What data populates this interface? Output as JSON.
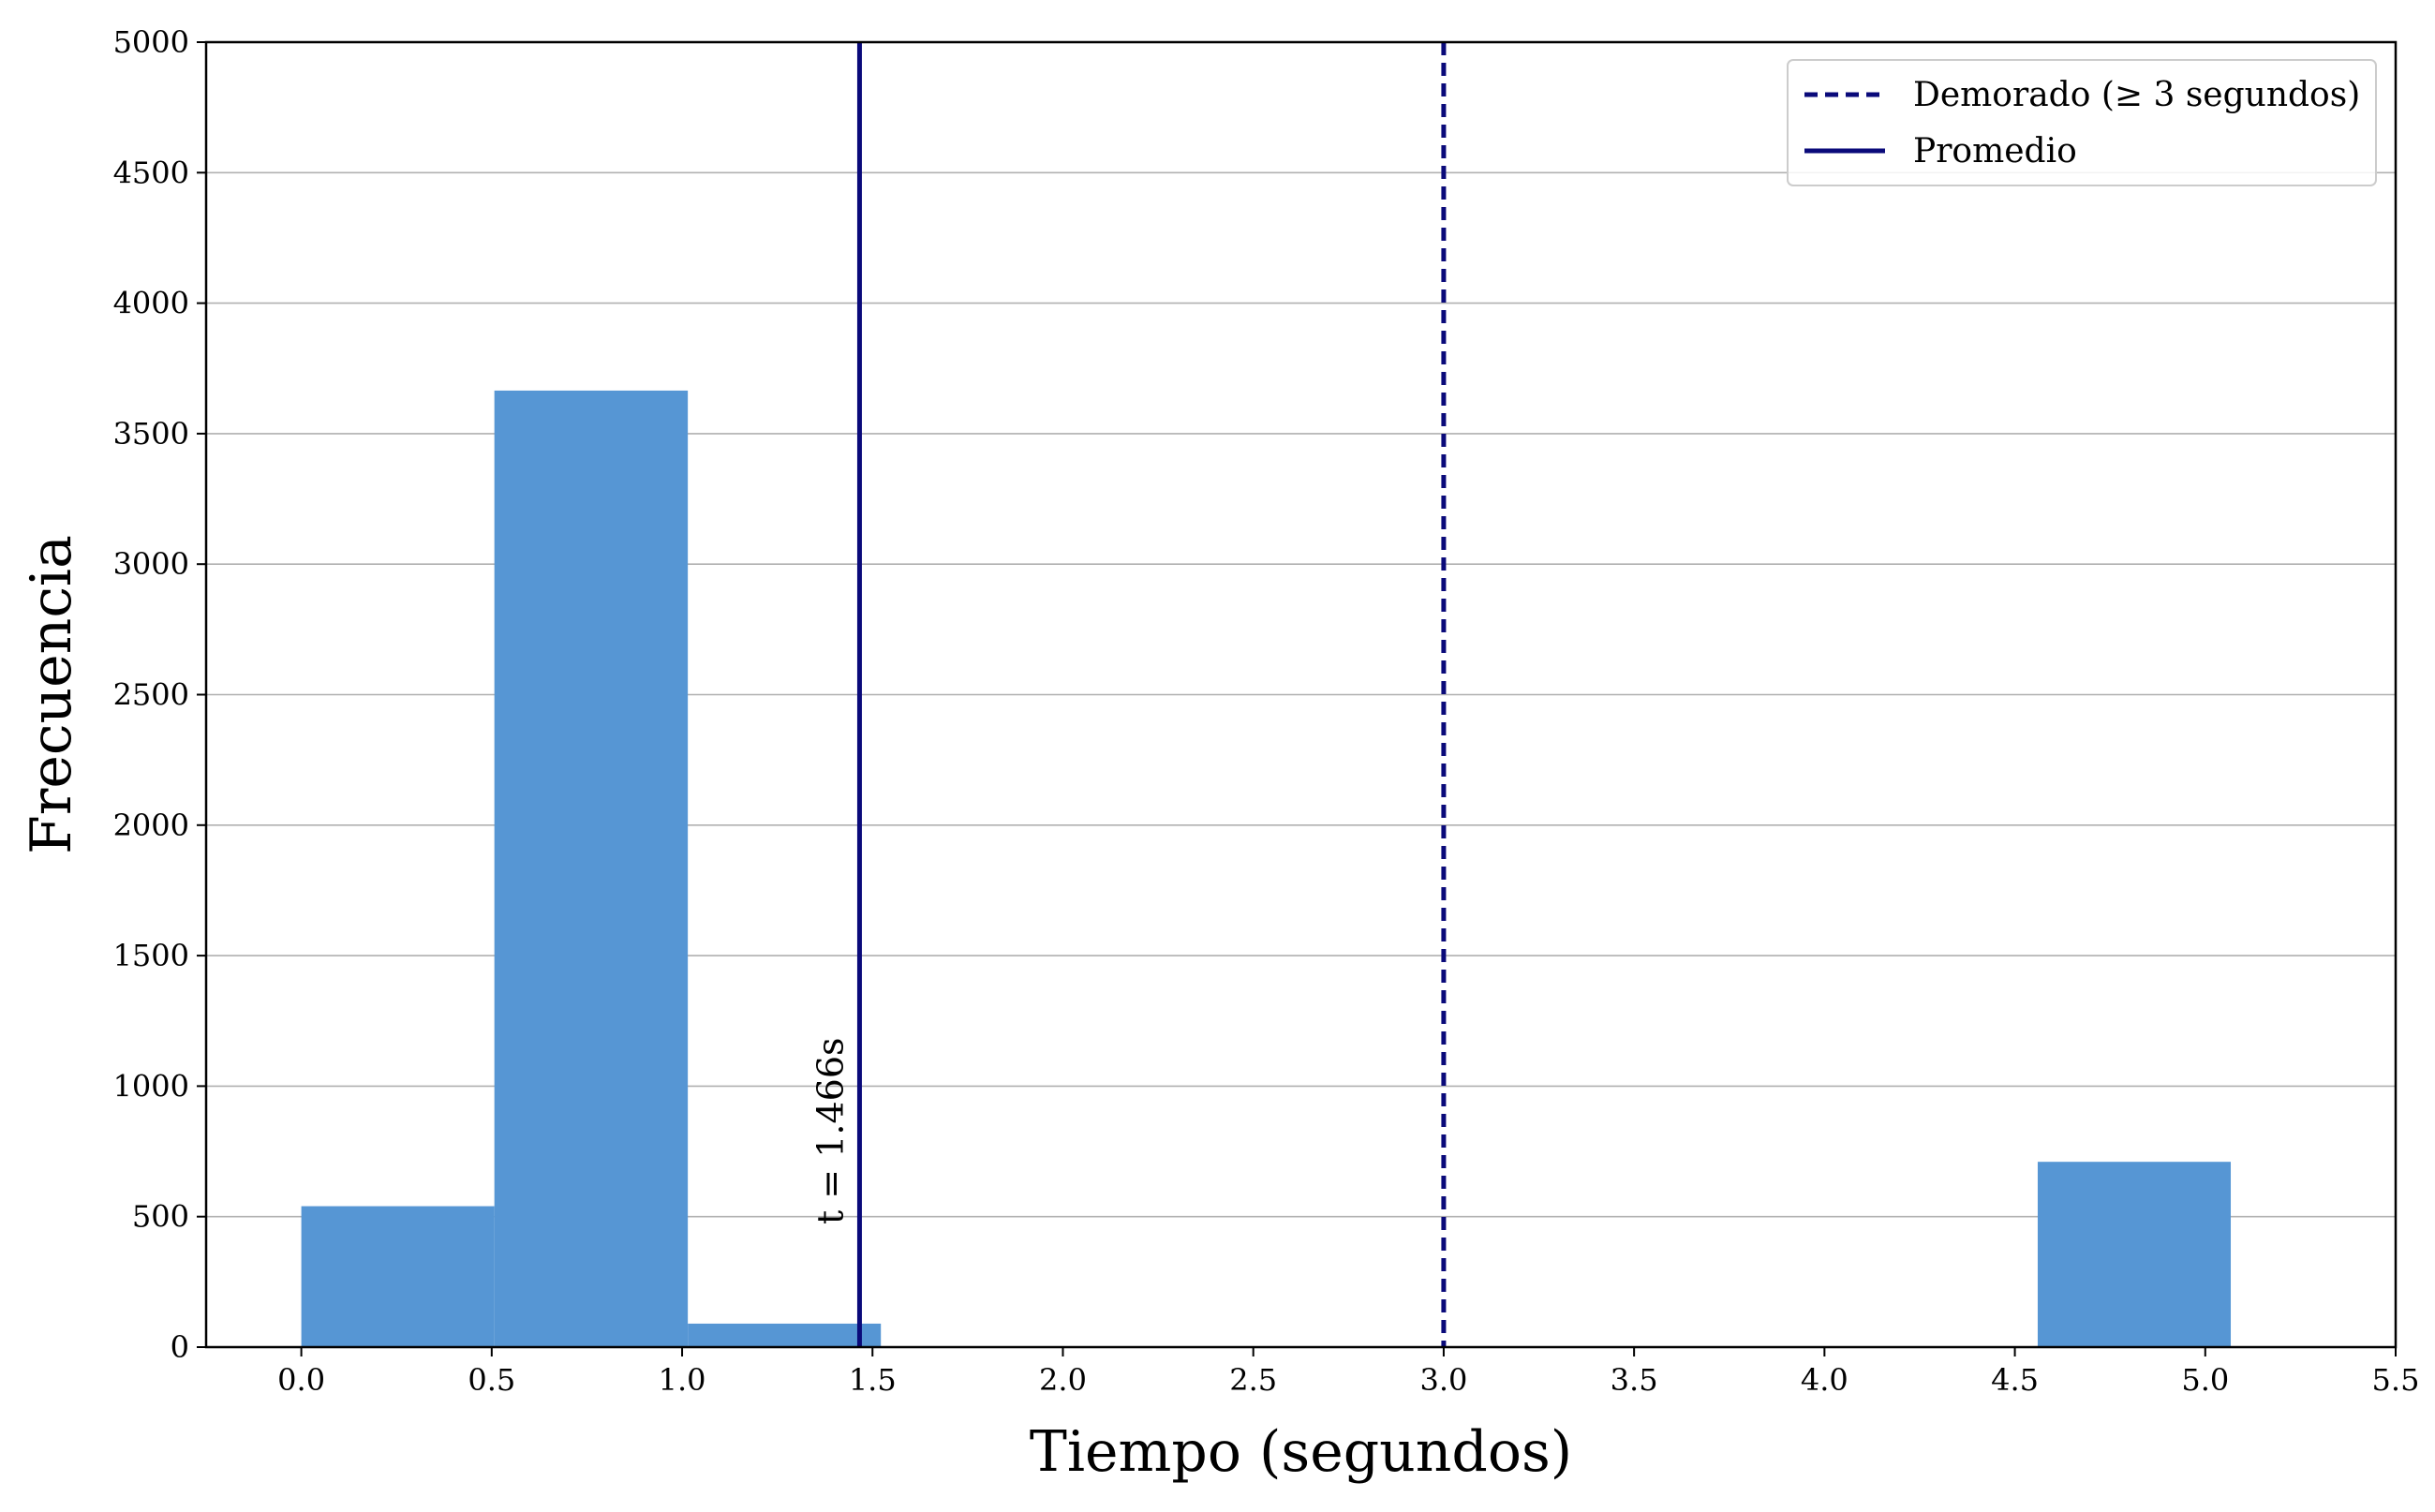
{
  "chart_data": {
    "type": "bar",
    "title": "",
    "xlabel": "Tiempo (segundos)",
    "ylabel": "Frecuencia",
    "xlim": [
      -0.25,
      5.5
    ],
    "ylim": [
      0,
      5000
    ],
    "x_ticks": [
      0.0,
      0.5,
      1.0,
      1.5,
      2.0,
      2.5,
      3.0,
      3.5,
      4.0,
      4.5,
      5.0,
      5.5
    ],
    "x_tick_labels": [
      "0.0",
      "0.5",
      "1.0",
      "1.5",
      "2.0",
      "2.5",
      "3.0",
      "3.5",
      "4.0",
      "4.5",
      "5.0",
      "5.5"
    ],
    "y_ticks": [
      0,
      500,
      1000,
      1500,
      2000,
      2500,
      3000,
      3500,
      4000,
      4500,
      5000
    ],
    "y_tick_labels": [
      "0",
      "500",
      "1000",
      "1500",
      "2000",
      "2500",
      "3000",
      "3500",
      "4000",
      "4500",
      "5000"
    ],
    "grid": "horizontal",
    "bins": [
      {
        "start": 0.0,
        "end": 0.507,
        "count": 540
      },
      {
        "start": 0.507,
        "end": 1.015,
        "count": 3665
      },
      {
        "start": 1.015,
        "end": 1.522,
        "count": 90
      },
      {
        "start": 4.56,
        "end": 5.067,
        "count": 710
      }
    ],
    "bar_color": "#5696d4",
    "reference_lines": [
      {
        "name": "Demorado (≥ 3 segundos)",
        "x": 3.0,
        "style": "dashed",
        "color": "#0a0a7a"
      },
      {
        "name": "Promedio",
        "x": 1.466,
        "style": "solid",
        "color": "#0a0a7a"
      }
    ],
    "annotations": [
      {
        "text": "t = 1.466s",
        "x": 1.466
      }
    ],
    "legend": {
      "position": "top-right",
      "entries": [
        {
          "label": "Demorado (≥ 3 segundos)",
          "style": "dashed"
        },
        {
          "label": "Promedio",
          "style": "solid"
        }
      ]
    }
  }
}
